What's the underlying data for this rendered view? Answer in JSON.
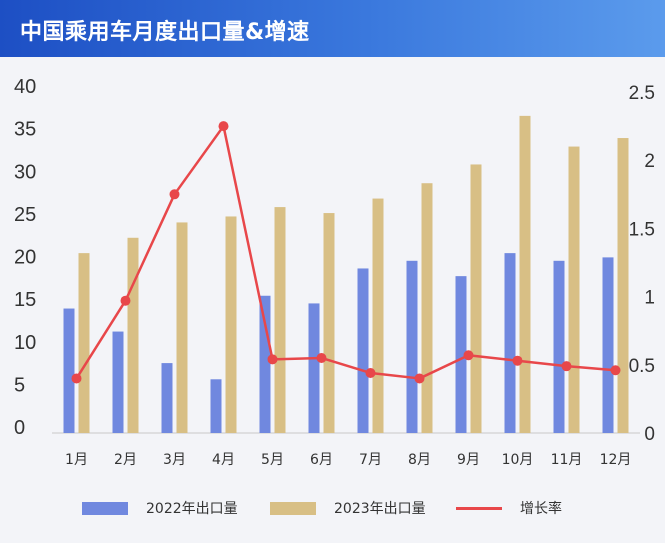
{
  "header": {
    "title": "中国乘用车月度出口量&增速"
  },
  "colors": {
    "bar_2022": "#7088df",
    "bar_2023": "#d8bf85",
    "line_growth": "#e8474a",
    "axis": "#c8c8c8"
  },
  "chart_data": {
    "type": "bar",
    "title": "中国乘用车月度出口量&增速",
    "categories": [
      "1月",
      "2月",
      "3月",
      "4月",
      "5月",
      "6月",
      "7月",
      "8月",
      "9月",
      "10月",
      "11月",
      "12月"
    ],
    "series": [
      {
        "name": "2022年出口量",
        "type": "bar",
        "axis": "left",
        "values": [
          14.6,
          11.9,
          8.2,
          6.3,
          16.1,
          15.2,
          19.3,
          20.2,
          18.4,
          21.1,
          20.2,
          20.6
        ]
      },
      {
        "name": "2023年出口量",
        "type": "bar",
        "axis": "left",
        "values": [
          21.1,
          22.9,
          24.7,
          25.4,
          26.5,
          25.8,
          27.5,
          29.3,
          31.5,
          37.2,
          33.6,
          34.6
        ]
      },
      {
        "name": "增长率",
        "type": "line",
        "axis": "right",
        "values": [
          0.4,
          0.97,
          1.75,
          2.25,
          0.54,
          0.55,
          0.44,
          0.4,
          0.57,
          0.53,
          0.49,
          0.46
        ]
      }
    ],
    "left_axis": {
      "ticks": [
        "40",
        "35",
        "30",
        "25",
        "20",
        "15",
        "10",
        "5",
        "0"
      ],
      "ylim": [
        0,
        40
      ]
    },
    "right_axis": {
      "ticks": [
        "2.5",
        "2",
        "1.5",
        "1",
        "0.5",
        "0"
      ],
      "ylim": [
        0,
        2.5
      ]
    },
    "legend": [
      "2022年出口量",
      "2023年出口量",
      "增长率"
    ],
    "legend_position": "bottom"
  }
}
